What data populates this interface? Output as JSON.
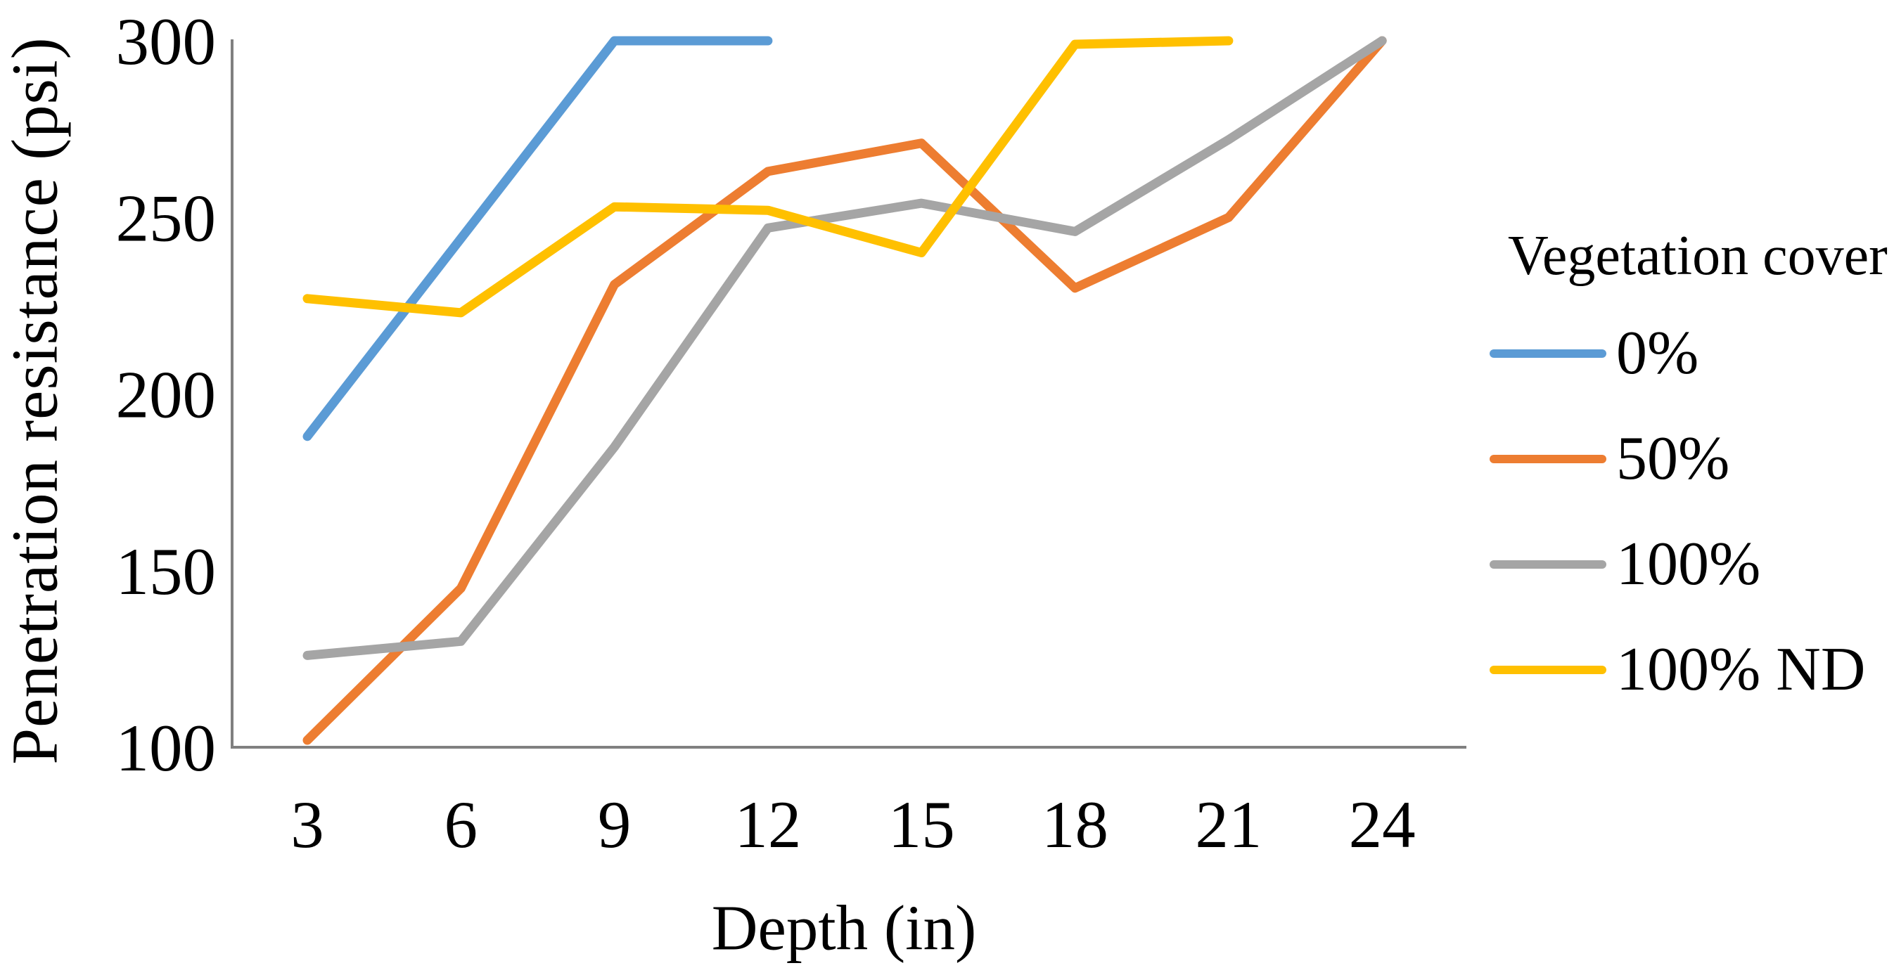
{
  "chart_data": {
    "type": "line",
    "title": "",
    "xlabel": "Depth (in)",
    "ylabel": "Penetration resistance (psi)",
    "x_ticks": [
      3,
      6,
      9,
      12,
      15,
      18,
      21,
      24
    ],
    "y_ticks": [
      100,
      150,
      200,
      250,
      300
    ],
    "ylim": [
      100,
      300
    ],
    "xlim": [
      3,
      24
    ],
    "grid": false,
    "legend_position": "right",
    "legend_title": "Vegetation cover",
    "axis_color": "#808080",
    "series": [
      {
        "name": "0%",
        "color": "#5B9BD5",
        "x": [
          3,
          6,
          9,
          12
        ],
        "values": [
          188,
          244,
          300,
          300
        ]
      },
      {
        "name": "50%",
        "color": "#ED7D31",
        "x": [
          3,
          6,
          9,
          12,
          15,
          18,
          21,
          24
        ],
        "values": [
          102,
          145,
          231,
          263,
          271,
          230,
          250,
          300
        ]
      },
      {
        "name": "100%",
        "color": "#A5A5A5",
        "x": [
          3,
          6,
          9,
          12,
          15,
          18,
          21,
          24
        ],
        "values": [
          126,
          130,
          185,
          247,
          254,
          246,
          272,
          300
        ]
      },
      {
        "name": "100% ND",
        "color": "#FFC000",
        "x": [
          3,
          6,
          9,
          12,
          15,
          18,
          21
        ],
        "values": [
          227,
          223,
          253,
          252,
          240,
          299,
          300
        ]
      }
    ]
  }
}
